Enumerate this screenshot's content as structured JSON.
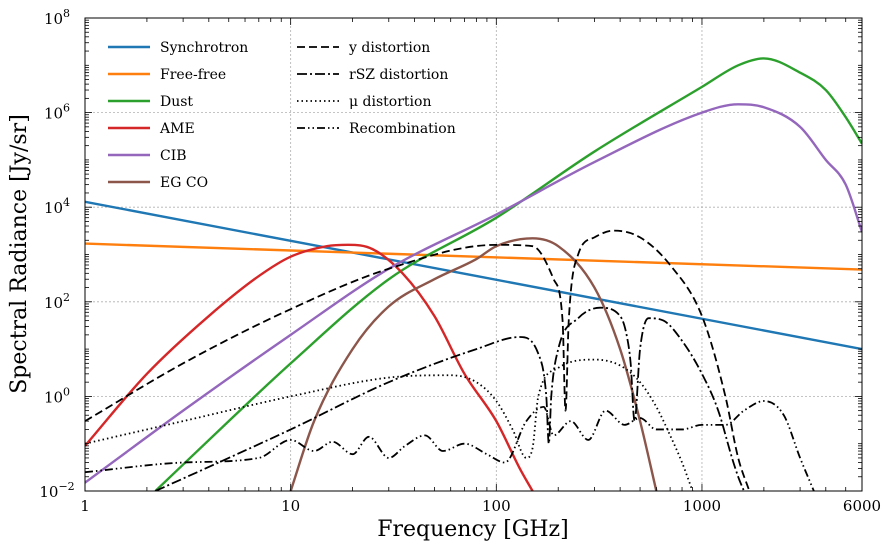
{
  "chart_data": {
    "type": "line",
    "title": "",
    "xlabel": "Frequency [GHz]",
    "ylabel": "Spectral Radiance [Jy/sr]",
    "xscale": "log",
    "yscale": "log",
    "xlim": [
      1,
      6000
    ],
    "ylim": [
      0.01,
      100000000
    ],
    "grid": true,
    "legend_placement": "top-left",
    "x_ticks": [
      {
        "value": 1,
        "label": "1"
      },
      {
        "value": 10,
        "label": "10"
      },
      {
        "value": 100,
        "label": "100"
      },
      {
        "value": 1000,
        "label": "1000"
      },
      {
        "value": 6000,
        "label": "6000"
      }
    ],
    "y_ticks": [
      {
        "value": 0.01,
        "base": "10",
        "exp": "−2"
      },
      {
        "value": 1,
        "base": "10",
        "exp": "0"
      },
      {
        "value": 100,
        "base": "10",
        "exp": "2"
      },
      {
        "value": 10000,
        "base": "10",
        "exp": "4"
      },
      {
        "value": 1000000,
        "base": "10",
        "exp": "6"
      },
      {
        "value": 100000000,
        "base": "10",
        "exp": "8"
      }
    ],
    "series": [
      {
        "name": "Synchrotron",
        "color": "#1f77b4",
        "style": "solid",
        "legend_col": 0,
        "x": [
          1,
          6000
        ],
        "y": [
          13000,
          10
        ]
      },
      {
        "name": "Free-free",
        "color": "#ff7f0e",
        "style": "solid",
        "legend_col": 0,
        "x": [
          1,
          6000
        ],
        "y": [
          1700,
          480
        ]
      },
      {
        "name": "Dust",
        "color": "#2ca02c",
        "style": "solid",
        "legend_col": 0,
        "x": [
          2.2,
          5,
          10,
          30,
          100,
          300,
          1000,
          1500,
          2000,
          3000,
          4000,
          5000,
          6000
        ],
        "y": [
          0.01,
          0.3,
          5,
          300,
          6000,
          150000,
          3500000,
          10000000,
          14000000,
          7000000,
          3000000,
          800000,
          220000
        ]
      },
      {
        "name": "AME",
        "color": "#d62728",
        "style": "solid",
        "legend_col": 0,
        "x": [
          1,
          2,
          4,
          7,
          10,
          15,
          19,
          25,
          35,
          50,
          70,
          100,
          130,
          150
        ],
        "y": [
          0.09,
          3,
          50,
          350,
          900,
          1500,
          1600,
          1300,
          400,
          50,
          3,
          0.3,
          0.03,
          0.01
        ]
      },
      {
        "name": "CIB",
        "color": "#9467bd",
        "style": "solid",
        "legend_col": 0,
        "x": [
          1,
          3,
          10,
          30,
          100,
          300,
          1000,
          1500,
          2000,
          3000,
          4000,
          5000,
          6000
        ],
        "y": [
          0.015,
          0.5,
          20,
          500,
          7000,
          90000,
          1000000,
          1500000,
          1300000,
          500000,
          100000,
          30000,
          3000
        ]
      },
      {
        "name": "EG CO",
        "color": "#8c564b",
        "style": "solid",
        "legend_col": 0,
        "x": [
          10,
          13,
          20,
          30,
          50,
          80,
          100,
          150,
          200,
          300,
          400,
          500,
          600
        ],
        "y": [
          0.01,
          0.3,
          10,
          80,
          300,
          800,
          1500,
          2200,
          1500,
          200,
          10,
          0.3,
          0.01
        ]
      },
      {
        "name": "y distortion",
        "color": "#000000",
        "style": "dashed",
        "legend_col": 1,
        "x": [
          1,
          3,
          10,
          30,
          100,
          150,
          190,
          210,
          217,
          225,
          250,
          300,
          370,
          500,
          700,
          1000,
          1300,
          1500,
          1700
        ],
        "y": [
          0.3,
          5,
          70,
          500,
          1600,
          1500,
          300,
          40,
          0.5,
          40,
          1000,
          2300,
          3200,
          2300,
          600,
          50,
          1,
          0.05,
          0.01
        ]
      },
      {
        "name": "rSZ distortion",
        "color": "#000000",
        "style": "dashdot",
        "legend_col": 1,
        "x": [
          2.2,
          5,
          10,
          30,
          80,
          130,
          160,
          175,
          180,
          185,
          200,
          250,
          320,
          400,
          430,
          450,
          470,
          500,
          550,
          650,
          800,
          1000,
          1200,
          1400,
          1500,
          1600
        ],
        "y": [
          0.01,
          0.05,
          0.2,
          2,
          10,
          18,
          8,
          1,
          0.1,
          1,
          10,
          45,
          75,
          50,
          20,
          5,
          0.3,
          10,
          45,
          40,
          15,
          3,
          0.5,
          0.05,
          0.02,
          0.01
        ]
      },
      {
        "name": "μ distortion",
        "color": "#000000",
        "style": "dotted",
        "legend_col": 1,
        "x": [
          1,
          3,
          10,
          30,
          60,
          80,
          100,
          120,
          140,
          150,
          160,
          200,
          300,
          400,
          500,
          600,
          700,
          800,
          900
        ],
        "y": [
          0.1,
          0.3,
          1,
          2.5,
          2.8,
          2,
          0.8,
          0.2,
          0.05,
          0.08,
          1,
          4,
          6,
          4.5,
          2,
          0.6,
          0.15,
          0.04,
          0.01
        ]
      },
      {
        "name": "Recombination",
        "color": "#000000",
        "style": "dashdotdot",
        "legend_col": 1,
        "x": [
          1,
          3,
          7,
          10,
          13,
          16,
          20,
          24,
          30,
          36,
          45,
          55,
          70,
          90,
          110,
          140,
          170,
          190,
          230,
          280,
          340,
          420,
          500,
          600,
          800,
          1000,
          1300,
          1600,
          2000,
          2500,
          3000,
          3500
        ],
        "y": [
          0.025,
          0.04,
          0.05,
          0.12,
          0.07,
          0.11,
          0.06,
          0.14,
          0.05,
          0.09,
          0.15,
          0.07,
          0.1,
          0.06,
          0.04,
          0.3,
          0.6,
          0.15,
          0.3,
          0.12,
          0.5,
          0.25,
          0.35,
          0.2,
          0.2,
          0.25,
          0.25,
          0.5,
          0.8,
          0.4,
          0.05,
          0.01
        ]
      }
    ]
  }
}
